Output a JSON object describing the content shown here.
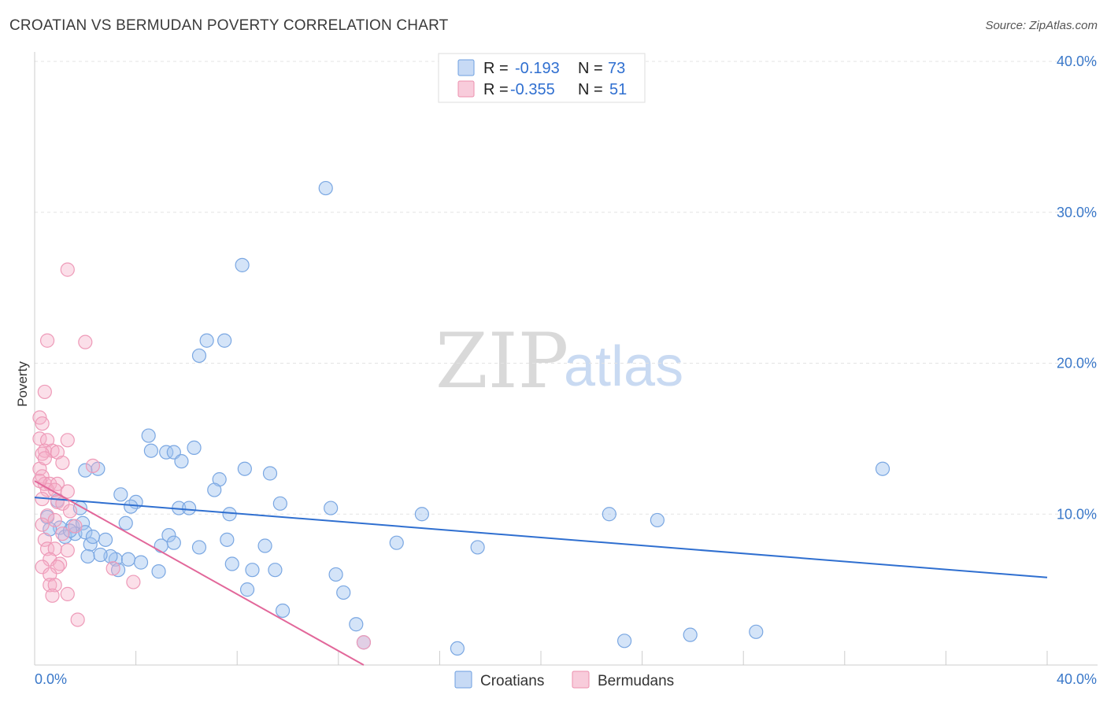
{
  "title": "CROATIAN VS BERMUDAN POVERTY CORRELATION CHART",
  "source": "Source: ZipAtlas.com",
  "watermark": {
    "left": "ZIP",
    "right": "atlas"
  },
  "colors": {
    "croatians": "#6c9fe0",
    "bermudans": "#ec8fae",
    "croatians_line": "#2f6fd0",
    "bermudans_line": "#e2679a",
    "label": "#3a78c9"
  },
  "legend": {
    "rows": [
      {
        "r_label": "R =",
        "r_value": "-0.193",
        "n_label": "N =",
        "n_value": "73"
      },
      {
        "r_label": "R =",
        "r_value": "-0.355",
        "n_label": "N =",
        "n_value": "51"
      }
    ]
  },
  "bottom_legend": [
    "Croatians",
    "Bermudans"
  ],
  "chart_data": {
    "type": "scatter",
    "ylabel": "Poverty",
    "xlim": [
      0,
      40
    ],
    "ylim": [
      0,
      40
    ],
    "x_tick_labels": [
      "0.0%",
      "40.0%"
    ],
    "y_ticks": [
      10,
      20,
      30,
      40
    ],
    "y_tick_labels": [
      "10.0%",
      "20.0%",
      "30.0%",
      "40.0%"
    ],
    "grid": true,
    "series": [
      {
        "name": "Croatians",
        "trend": [
          [
            0,
            11.1
          ],
          [
            40,
            5.8
          ]
        ],
        "points": [
          [
            11.5,
            31.6
          ],
          [
            8.2,
            26.5
          ],
          [
            6.8,
            21.5
          ],
          [
            7.5,
            21.5
          ],
          [
            6.5,
            20.5
          ],
          [
            4.5,
            15.2
          ],
          [
            6.3,
            14.4
          ],
          [
            4.6,
            14.2
          ],
          [
            5.2,
            14.1
          ],
          [
            5.5,
            14.1
          ],
          [
            2.5,
            13.0
          ],
          [
            5.8,
            13.5
          ],
          [
            8.3,
            13.0
          ],
          [
            9.3,
            12.7
          ],
          [
            7.3,
            12.3
          ],
          [
            2.0,
            12.9
          ],
          [
            3.4,
            11.3
          ],
          [
            4.0,
            10.8
          ],
          [
            7.1,
            11.6
          ],
          [
            9.7,
            10.7
          ],
          [
            3.8,
            10.5
          ],
          [
            5.7,
            10.4
          ],
          [
            6.1,
            10.4
          ],
          [
            11.7,
            10.4
          ],
          [
            7.7,
            10.0
          ],
          [
            15.3,
            10.0
          ],
          [
            22.7,
            10.0
          ],
          [
            24.6,
            9.6
          ],
          [
            33.5,
            13.0
          ],
          [
            0.5,
            9.8
          ],
          [
            1.0,
            9.1
          ],
          [
            1.5,
            9.2
          ],
          [
            1.9,
            9.4
          ],
          [
            0.6,
            9.0
          ],
          [
            1.2,
            8.5
          ],
          [
            1.6,
            8.7
          ],
          [
            2.0,
            8.8
          ],
          [
            3.6,
            9.4
          ],
          [
            5.3,
            8.6
          ],
          [
            7.6,
            8.3
          ],
          [
            14.3,
            8.1
          ],
          [
            17.5,
            7.8
          ],
          [
            2.2,
            8.0
          ],
          [
            2.8,
            8.3
          ],
          [
            5.0,
            7.9
          ],
          [
            5.5,
            8.1
          ],
          [
            6.5,
            7.8
          ],
          [
            9.1,
            7.9
          ],
          [
            2.1,
            7.2
          ],
          [
            3.2,
            7.0
          ],
          [
            3.7,
            7.0
          ],
          [
            4.2,
            6.8
          ],
          [
            7.8,
            6.7
          ],
          [
            3.3,
            6.3
          ],
          [
            4.9,
            6.2
          ],
          [
            8.6,
            6.3
          ],
          [
            9.5,
            6.3
          ],
          [
            11.9,
            6.0
          ],
          [
            8.4,
            5.0
          ],
          [
            12.2,
            4.8
          ],
          [
            9.8,
            3.6
          ],
          [
            12.7,
            2.7
          ],
          [
            13.0,
            1.5
          ],
          [
            16.7,
            1.1
          ],
          [
            23.3,
            1.6
          ],
          [
            25.9,
            2.0
          ],
          [
            28.5,
            2.2
          ],
          [
            1.8,
            10.4
          ],
          [
            2.3,
            8.5
          ],
          [
            3.0,
            7.2
          ],
          [
            0.9,
            10.9
          ],
          [
            1.4,
            8.9
          ],
          [
            2.6,
            7.3
          ]
        ]
      },
      {
        "name": "Bermudans",
        "trend": [
          [
            0,
            12.2
          ],
          [
            13.0,
            0.0
          ]
        ],
        "points": [
          [
            1.3,
            26.2
          ],
          [
            0.5,
            21.5
          ],
          [
            2.0,
            21.4
          ],
          [
            0.4,
            18.1
          ],
          [
            0.2,
            16.4
          ],
          [
            0.3,
            16.0
          ],
          [
            0.2,
            15.0
          ],
          [
            0.5,
            14.9
          ],
          [
            1.3,
            14.9
          ],
          [
            0.4,
            14.2
          ],
          [
            0.7,
            14.2
          ],
          [
            0.3,
            14.0
          ],
          [
            0.9,
            14.1
          ],
          [
            1.1,
            13.4
          ],
          [
            0.2,
            13.0
          ],
          [
            2.3,
            13.2
          ],
          [
            0.3,
            12.5
          ],
          [
            0.4,
            12.0
          ],
          [
            0.6,
            12.0
          ],
          [
            0.9,
            12.0
          ],
          [
            0.5,
            11.6
          ],
          [
            0.8,
            11.6
          ],
          [
            1.3,
            11.5
          ],
          [
            0.3,
            11.0
          ],
          [
            0.9,
            10.8
          ],
          [
            1.1,
            10.7
          ],
          [
            1.4,
            10.2
          ],
          [
            0.5,
            9.9
          ],
          [
            0.8,
            9.6
          ],
          [
            0.3,
            9.3
          ],
          [
            1.1,
            8.7
          ],
          [
            0.4,
            8.3
          ],
          [
            0.5,
            7.7
          ],
          [
            0.8,
            7.7
          ],
          [
            1.3,
            7.6
          ],
          [
            0.6,
            7.0
          ],
          [
            1.0,
            6.7
          ],
          [
            0.9,
            6.5
          ],
          [
            0.3,
            6.5
          ],
          [
            0.6,
            6.0
          ],
          [
            3.1,
            6.4
          ],
          [
            3.9,
            5.5
          ],
          [
            0.6,
            5.3
          ],
          [
            0.8,
            5.3
          ],
          [
            1.3,
            4.7
          ],
          [
            0.7,
            4.6
          ],
          [
            1.7,
            3.0
          ],
          [
            13.0,
            1.5
          ],
          [
            0.4,
            13.7
          ],
          [
            0.2,
            12.2
          ],
          [
            1.6,
            9.2
          ]
        ]
      }
    ]
  }
}
